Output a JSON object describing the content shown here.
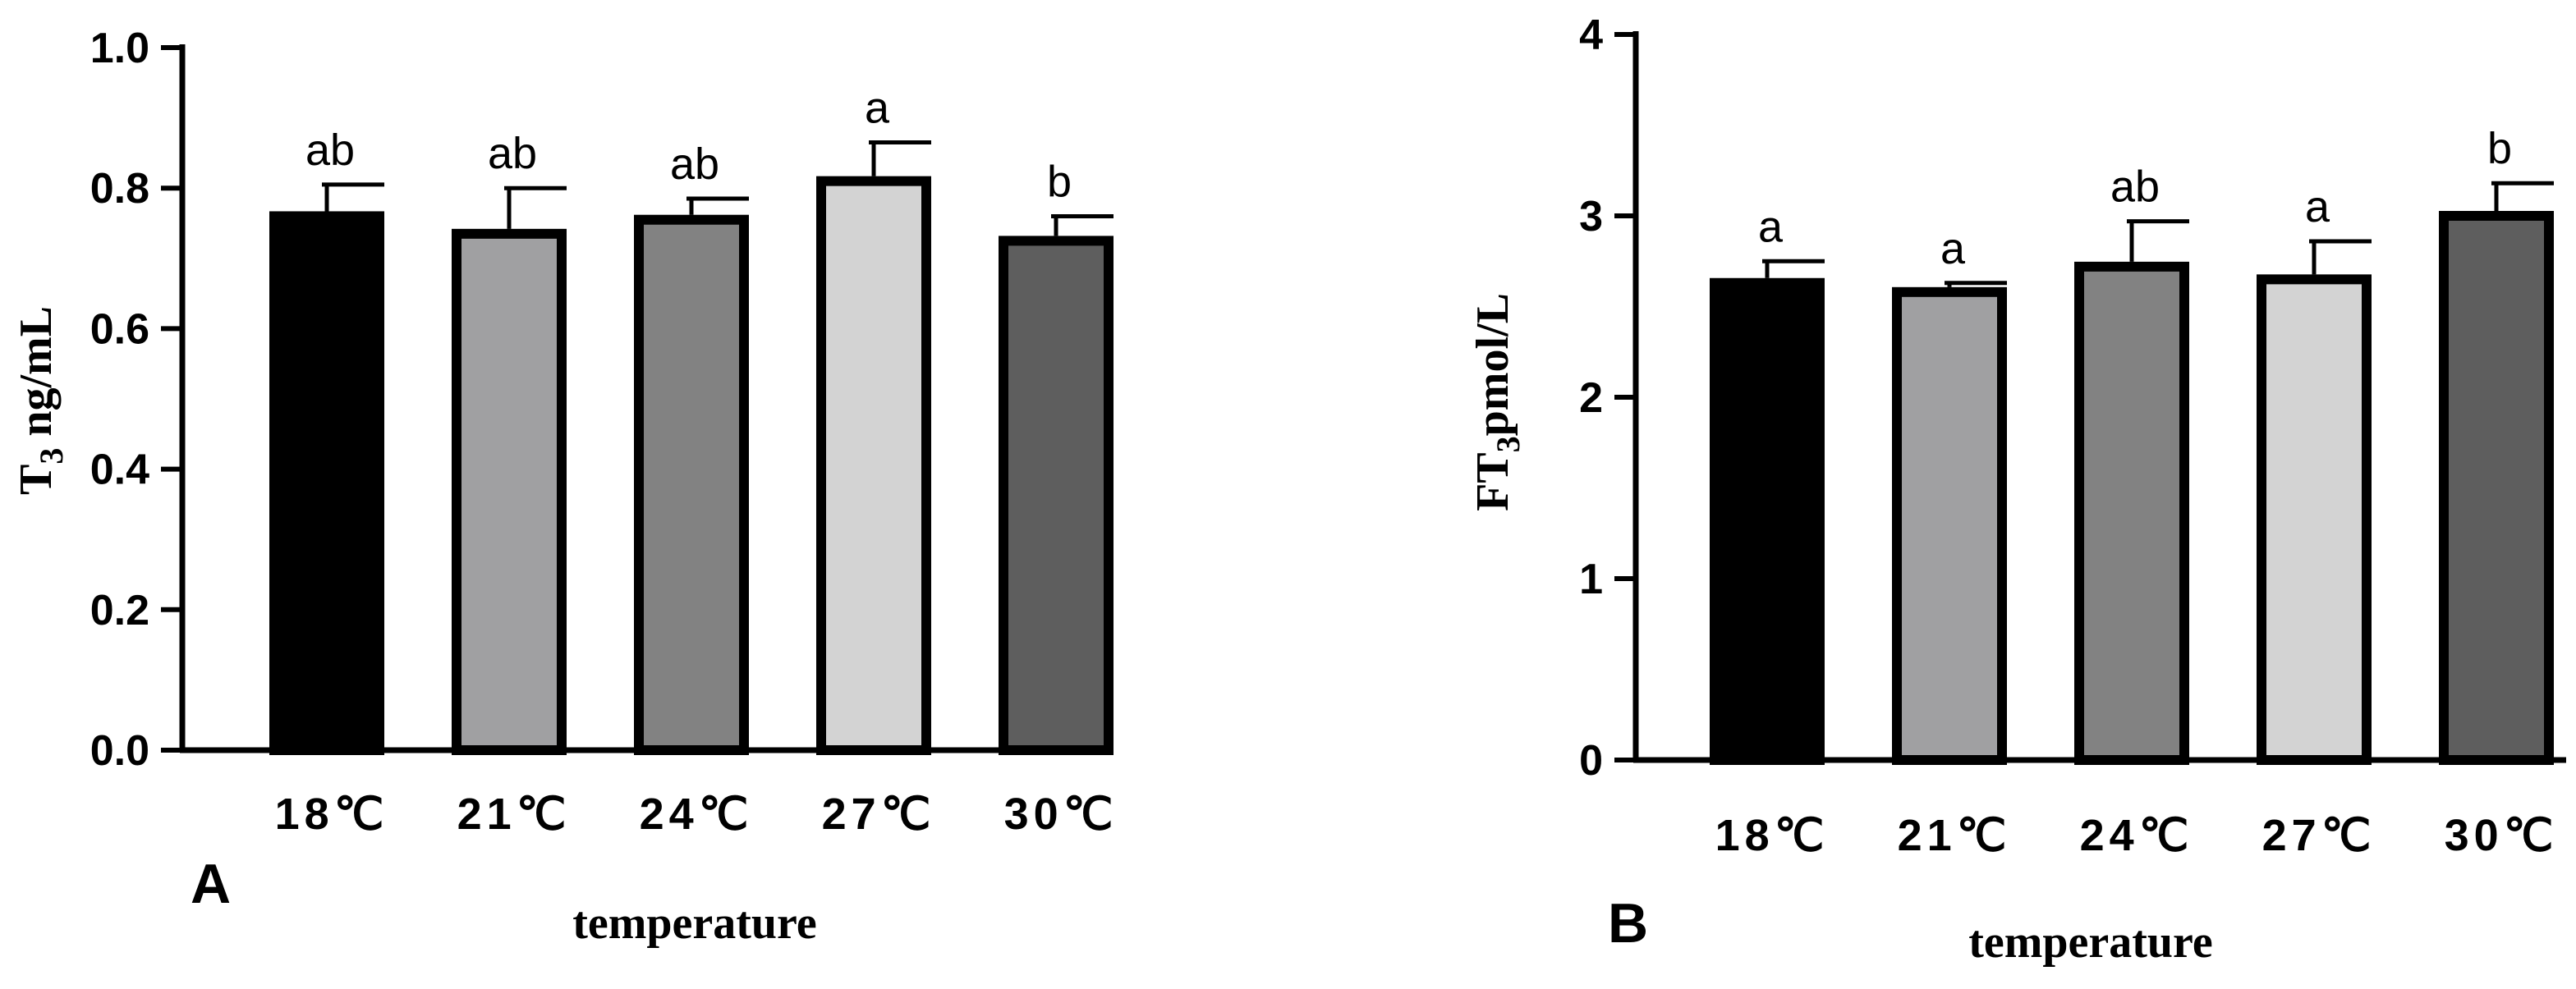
{
  "chart_data": [
    {
      "panel": "A",
      "type": "bar",
      "categories": [
        "18℃",
        "21℃",
        "24℃",
        "27℃",
        "30℃"
      ],
      "values": [
        0.76,
        0.735,
        0.755,
        0.81,
        0.725
      ],
      "errors": [
        0.045,
        0.065,
        0.03,
        0.055,
        0.035
      ],
      "significance": [
        "ab",
        "ab",
        "ab",
        "a",
        "b"
      ],
      "colors": [
        "#000000",
        "#a0a0a2",
        "#828282",
        "#d3d3d3",
        "#5e5e5e"
      ],
      "ylabel_main": "T",
      "ylabel_sub": "3",
      "ylabel_rest": " ng/mL",
      "xlabel": "temperature",
      "ylim": [
        0,
        1.0
      ],
      "yticks": [
        "0.0",
        "0.2",
        "0.4",
        "0.6",
        "0.8",
        "1.0"
      ],
      "grid": false,
      "legend": "none"
    },
    {
      "panel": "B",
      "type": "bar",
      "categories": [
        "18℃",
        "21℃",
        "24℃",
        "27℃",
        "30℃"
      ],
      "values": [
        2.63,
        2.58,
        2.72,
        2.65,
        3.0
      ],
      "errors": [
        0.12,
        0.05,
        0.25,
        0.21,
        0.18
      ],
      "significance": [
        "a",
        "a",
        "ab",
        "a",
        "b"
      ],
      "colors": [
        "#000000",
        "#a0a0a2",
        "#828282",
        "#d3d3d3",
        "#5e5e5e"
      ],
      "ylabel_main": "FT",
      "ylabel_sub": "3",
      "ylabel_rest": "pmol/L",
      "xlabel": "temperature",
      "ylim": [
        0,
        4
      ],
      "yticks": [
        "0",
        "1",
        "2",
        "3",
        "4"
      ],
      "grid": false,
      "legend": "none"
    }
  ]
}
